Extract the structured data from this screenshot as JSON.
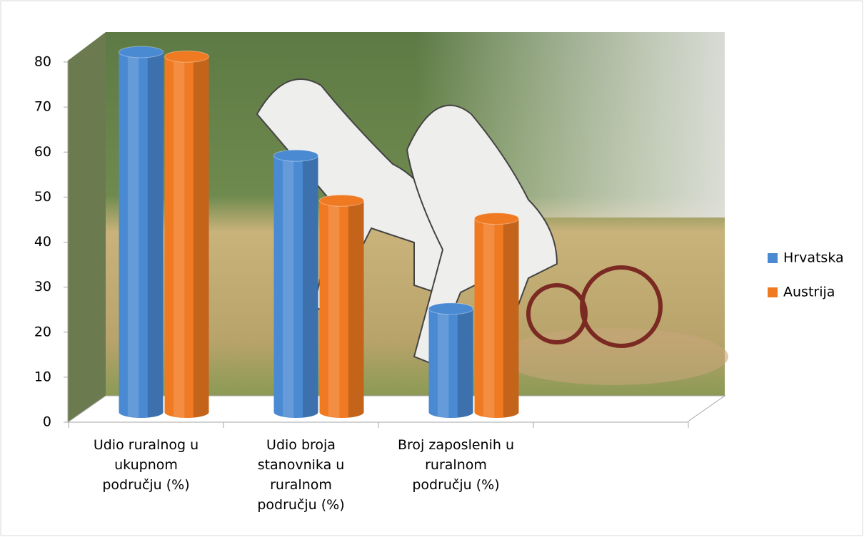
{
  "chart_data": {
    "type": "bar3d",
    "categories": [
      "Udio  ruralnog u ukupnom području (%)",
      "Udio broja stanovnika u ruralnom području (%)",
      "Broj zaposlenih u ruralnom području (%)",
      null
    ],
    "series": [
      {
        "name": "Hrvatska",
        "color": "#4a8ad3",
        "values": [
          80,
          57,
          23,
          null
        ]
      },
      {
        "name": "Austrija",
        "color": "#f07a22",
        "values": [
          79,
          47,
          43,
          null
        ]
      }
    ],
    "ylim": [
      0,
      80
    ],
    "yticks": [
      0,
      10,
      20,
      30,
      40,
      50,
      60,
      70,
      80
    ],
    "legend": "right"
  }
}
